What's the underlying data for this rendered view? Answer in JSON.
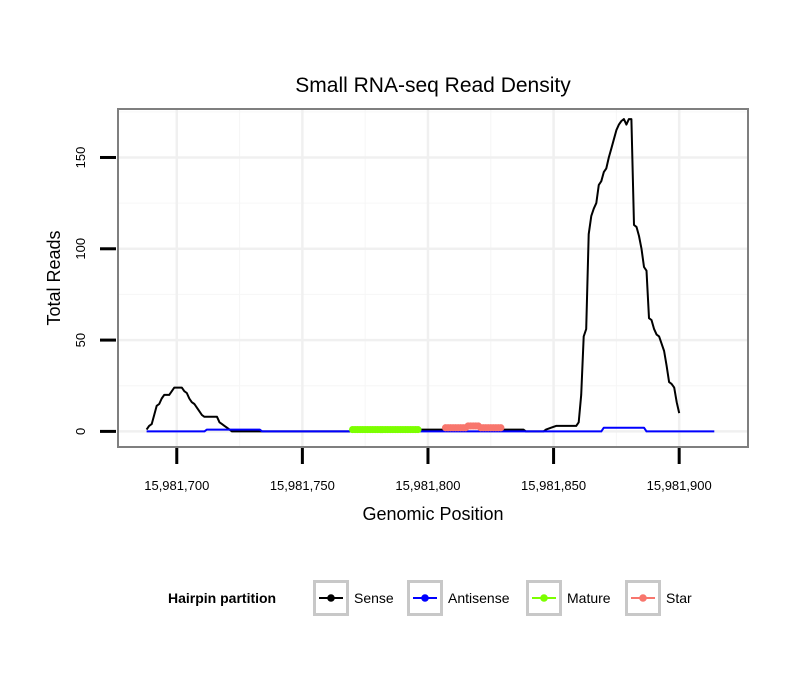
{
  "chart_data": {
    "type": "line",
    "title": "Small RNA-seq Read Density",
    "xlabel": "Genomic Position",
    "ylabel": "Total Reads",
    "xlim": [
      15981677,
      15981927
    ],
    "ylim": [
      -8,
      176
    ],
    "x_ticks": [
      15981700,
      15981750,
      15981800,
      15981850,
      15981900
    ],
    "x_tick_labels": [
      "15,981,700",
      "15,981,750",
      "15,981,800",
      "15,981,850",
      "15,981,900"
    ],
    "y_ticks": [
      0,
      50,
      100,
      150
    ],
    "y_tick_labels": [
      "0",
      "50",
      "100",
      "150"
    ],
    "grid": true,
    "legend": {
      "title": "Hairpin partition",
      "position": "bottom",
      "entries": [
        "Sense",
        "Antisense",
        "Mature",
        "Star"
      ]
    },
    "series": [
      {
        "name": "Sense",
        "color": "#000000",
        "points": [
          [
            15981688,
            1
          ],
          [
            15981689,
            3
          ],
          [
            15981690,
            4
          ],
          [
            15981691,
            9
          ],
          [
            15981692,
            14
          ],
          [
            15981693,
            15
          ],
          [
            15981694,
            18
          ],
          [
            15981695,
            20
          ],
          [
            15981697,
            20
          ],
          [
            15981698,
            22
          ],
          [
            15981699,
            24
          ],
          [
            15981702,
            24
          ],
          [
            15981703,
            22
          ],
          [
            15981704,
            21
          ],
          [
            15981705,
            18
          ],
          [
            15981706,
            16
          ],
          [
            15981707,
            15
          ],
          [
            15981708,
            13
          ],
          [
            15981709,
            11
          ],
          [
            15981710,
            9
          ],
          [
            15981711,
            8
          ],
          [
            15981716,
            8
          ],
          [
            15981717,
            5
          ],
          [
            15981718,
            4
          ],
          [
            15981719,
            3
          ],
          [
            15981720,
            2
          ],
          [
            15981721,
            1
          ],
          [
            15981722,
            0
          ],
          [
            15981795,
            0
          ],
          [
            15981797,
            1
          ],
          [
            15981815,
            1
          ],
          [
            15981816,
            2
          ],
          [
            15981820,
            2
          ],
          [
            15981821,
            1
          ],
          [
            15981838,
            1
          ],
          [
            15981839,
            0
          ],
          [
            15981846,
            0
          ],
          [
            15981847,
            1
          ],
          [
            15981849,
            2
          ],
          [
            15981851,
            3
          ],
          [
            15981859,
            3
          ],
          [
            15981860,
            5
          ],
          [
            15981861,
            20
          ],
          [
            15981862,
            52
          ],
          [
            15981863,
            56
          ],
          [
            15981864,
            108
          ],
          [
            15981865,
            118
          ],
          [
            15981866,
            122
          ],
          [
            15981867,
            125
          ],
          [
            15981868,
            135
          ],
          [
            15981869,
            137
          ],
          [
            15981870,
            142
          ],
          [
            15981871,
            144
          ],
          [
            15981872,
            150
          ],
          [
            15981873,
            155
          ],
          [
            15981874,
            160
          ],
          [
            15981875,
            165
          ],
          [
            15981876,
            168
          ],
          [
            15981877,
            170
          ],
          [
            15981878,
            171
          ],
          [
            15981879,
            168
          ],
          [
            15981880,
            171
          ],
          [
            15981881,
            171
          ],
          [
            15981882,
            113
          ],
          [
            15981883,
            112
          ],
          [
            15981884,
            107
          ],
          [
            15981885,
            100
          ],
          [
            15981886,
            90
          ],
          [
            15981887,
            88
          ],
          [
            15981888,
            62
          ],
          [
            15981889,
            61
          ],
          [
            15981890,
            56
          ],
          [
            15981891,
            53
          ],
          [
            15981892,
            52
          ],
          [
            15981893,
            48
          ],
          [
            15981894,
            44
          ],
          [
            15981895,
            36
          ],
          [
            15981896,
            27
          ],
          [
            15981897,
            26
          ],
          [
            15981898,
            24
          ],
          [
            15981899,
            16
          ],
          [
            15981900,
            10
          ]
        ]
      },
      {
        "name": "Antisense",
        "color": "#0000ff",
        "points": [
          [
            15981688,
            0
          ],
          [
            15981711,
            0
          ],
          [
            15981712,
            1
          ],
          [
            15981733,
            1
          ],
          [
            15981734,
            0
          ],
          [
            15981869,
            0
          ],
          [
            15981870,
            2
          ],
          [
            15981886,
            2
          ],
          [
            15981887,
            0
          ],
          [
            15981914,
            0
          ]
        ]
      },
      {
        "name": "Mature",
        "color": "#7cff00",
        "points": [
          [
            15981770,
            1
          ],
          [
            15981771,
            1
          ],
          [
            15981772,
            1
          ],
          [
            15981773,
            1
          ],
          [
            15981774,
            1
          ],
          [
            15981775,
            1
          ],
          [
            15981776,
            1
          ],
          [
            15981777,
            1
          ],
          [
            15981778,
            1
          ],
          [
            15981779,
            1
          ],
          [
            15981780,
            1
          ],
          [
            15981781,
            1
          ],
          [
            15981782,
            1
          ],
          [
            15981783,
            1
          ],
          [
            15981784,
            1
          ],
          [
            15981785,
            1
          ],
          [
            15981786,
            1
          ],
          [
            15981787,
            1
          ],
          [
            15981788,
            1
          ],
          [
            15981789,
            1
          ],
          [
            15981790,
            1
          ],
          [
            15981791,
            1
          ],
          [
            15981792,
            1
          ],
          [
            15981793,
            1
          ],
          [
            15981794,
            1
          ],
          [
            15981795,
            1
          ],
          [
            15981796,
            1
          ]
        ]
      },
      {
        "name": "Star",
        "color": "#f8766d",
        "points": [
          [
            15981807,
            2
          ],
          [
            15981808,
            2
          ],
          [
            15981809,
            2
          ],
          [
            15981810,
            2
          ],
          [
            15981811,
            2
          ],
          [
            15981812,
            2
          ],
          [
            15981813,
            2
          ],
          [
            15981814,
            2
          ],
          [
            15981815,
            2
          ],
          [
            15981816,
            3
          ],
          [
            15981817,
            3
          ],
          [
            15981818,
            3
          ],
          [
            15981819,
            3
          ],
          [
            15981820,
            3
          ],
          [
            15981821,
            2
          ],
          [
            15981822,
            2
          ],
          [
            15981823,
            2
          ],
          [
            15981824,
            2
          ],
          [
            15981825,
            2
          ],
          [
            15981826,
            2
          ],
          [
            15981827,
            2
          ],
          [
            15981828,
            2
          ],
          [
            15981829,
            2
          ]
        ]
      }
    ]
  }
}
